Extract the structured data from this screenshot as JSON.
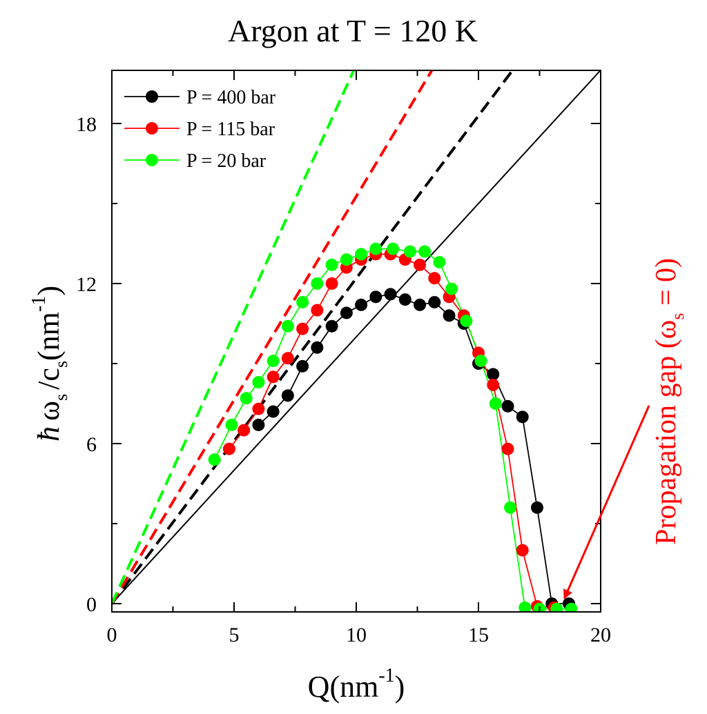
{
  "chart_data": {
    "type": "scatter",
    "title": "Argon at T = 120 K",
    "xlabel": {
      "main": "Q(nm",
      "sup": "-1",
      "close": ")"
    },
    "ylabel": {
      "hbar": "ħ",
      "omega": "ω",
      "omega_sub": "s",
      "slash_c": "/c",
      "c_sub": "s",
      "unit": "(nm",
      "unit_sup": "-1",
      "close": ")"
    },
    "xlim": [
      0,
      20
    ],
    "ylim": [
      -0.3,
      20.5
    ],
    "xticks": [
      0,
      5,
      10,
      15,
      20
    ],
    "xtick_labels": [
      "0",
      "5",
      "10",
      "15",
      "20"
    ],
    "yticks": [
      0,
      6,
      12,
      18
    ],
    "ytick_labels": [
      "0",
      "6",
      "12",
      "18"
    ],
    "legend_position": "top-left",
    "series": [
      {
        "name": "P = 400 bar",
        "color": "#000000",
        "x": [
          6.0,
          6.6,
          7.2,
          7.8,
          8.4,
          9.0,
          9.6,
          10.2,
          10.8,
          11.4,
          12.0,
          12.6,
          13.2,
          13.8,
          14.4,
          15.0,
          15.6,
          16.2,
          16.8,
          17.4,
          18.0,
          18.7
        ],
        "y": [
          6.7,
          7.2,
          7.8,
          8.9,
          9.6,
          10.4,
          10.9,
          11.2,
          11.5,
          11.6,
          11.4,
          11.2,
          11.3,
          10.8,
          10.5,
          9.0,
          8.6,
          7.4,
          7.0,
          3.6,
          0.0,
          0.0
        ]
      },
      {
        "name": "P = 115 bar",
        "color": "#ff0000",
        "x": [
          4.8,
          5.4,
          6.0,
          6.6,
          7.2,
          7.8,
          8.4,
          9.0,
          9.6,
          10.2,
          10.8,
          11.4,
          12.0,
          12.6,
          13.2,
          13.8,
          14.4,
          15.0,
          15.6,
          16.2,
          16.8,
          17.4,
          18.1
        ],
        "y": [
          5.8,
          6.5,
          7.3,
          8.5,
          9.2,
          10.3,
          11.0,
          12.0,
          12.6,
          12.9,
          13.1,
          13.1,
          12.9,
          12.7,
          12.2,
          11.5,
          10.8,
          9.4,
          8.2,
          5.8,
          2.0,
          -0.1,
          -0.15
        ]
      },
      {
        "name": "P = 20 bar",
        "color": "#00ff00",
        "x": [
          4.2,
          4.9,
          5.5,
          6.0,
          6.6,
          7.2,
          7.8,
          8.4,
          9.0,
          9.6,
          10.2,
          10.8,
          11.5,
          12.2,
          12.8,
          13.4,
          13.9,
          14.5,
          15.1,
          15.7,
          16.3,
          16.9,
          17.5,
          18.2,
          18.8
        ],
        "y": [
          5.4,
          6.7,
          7.7,
          8.3,
          9.1,
          10.4,
          11.3,
          12.0,
          12.7,
          12.9,
          13.1,
          13.3,
          13.3,
          13.2,
          13.2,
          12.8,
          11.8,
          10.6,
          9.1,
          7.5,
          3.6,
          -0.15,
          -0.2,
          -0.2,
          -0.2
        ]
      }
    ],
    "lines": [
      {
        "name": "unity-line",
        "color": "#000000",
        "style": "solid",
        "x": [
          0,
          20
        ],
        "y": [
          0,
          20
        ]
      },
      {
        "name": "400-bar-slope",
        "color": "#000000",
        "style": "dashed",
        "x": [
          0,
          16.4
        ],
        "y": [
          0,
          20
        ]
      },
      {
        "name": "115-bar-slope",
        "color": "#ff0000",
        "style": "dashed",
        "x": [
          0,
          13.1
        ],
        "y": [
          0,
          20
        ]
      },
      {
        "name": "20-bar-slope",
        "color": "#00ff00",
        "style": "dashed",
        "x": [
          0,
          9.9
        ],
        "y": [
          0,
          20
        ]
      }
    ],
    "annotation": {
      "text": "Propagation gap (ω",
      "sub": "s",
      "tail": " = 0)",
      "color": "#ff0000",
      "arrow_target": {
        "x": 18.35,
        "y": 0.0
      }
    }
  }
}
